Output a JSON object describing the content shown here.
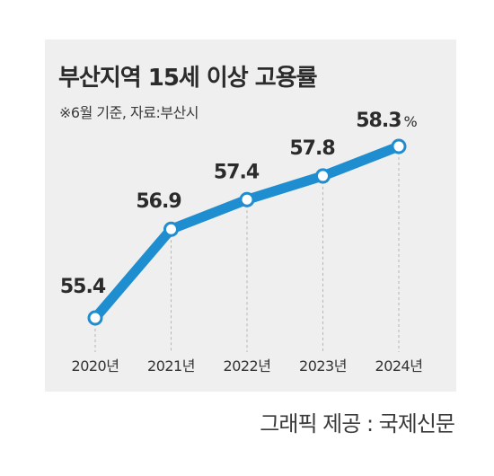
{
  "chart_data": {
    "type": "line",
    "title": "부산지역 15세 이상 고용률",
    "subtitle": "※6월 기준, 자료:부산시",
    "categories": [
      "2020년",
      "2021년",
      "2022년",
      "2023년",
      "2024년"
    ],
    "series": [
      {
        "values": [
          55.4,
          56.9,
          57.4,
          57.8,
          58.3
        ],
        "labels": [
          "55.4",
          "56.9",
          "57.4",
          "57.8",
          "58.3"
        ],
        "color": "#1f8ed0"
      }
    ],
    "unit_label": "%",
    "ylim": [
      55.0,
      58.6
    ],
    "grid": "vertical dashed"
  },
  "credit": "그래픽 제공 : 국제신문",
  "colors": {
    "panel_bg": "#efefef",
    "line": "#1f8ed0",
    "marker_fill": "#ffffff",
    "text": "#2b2b2b"
  }
}
